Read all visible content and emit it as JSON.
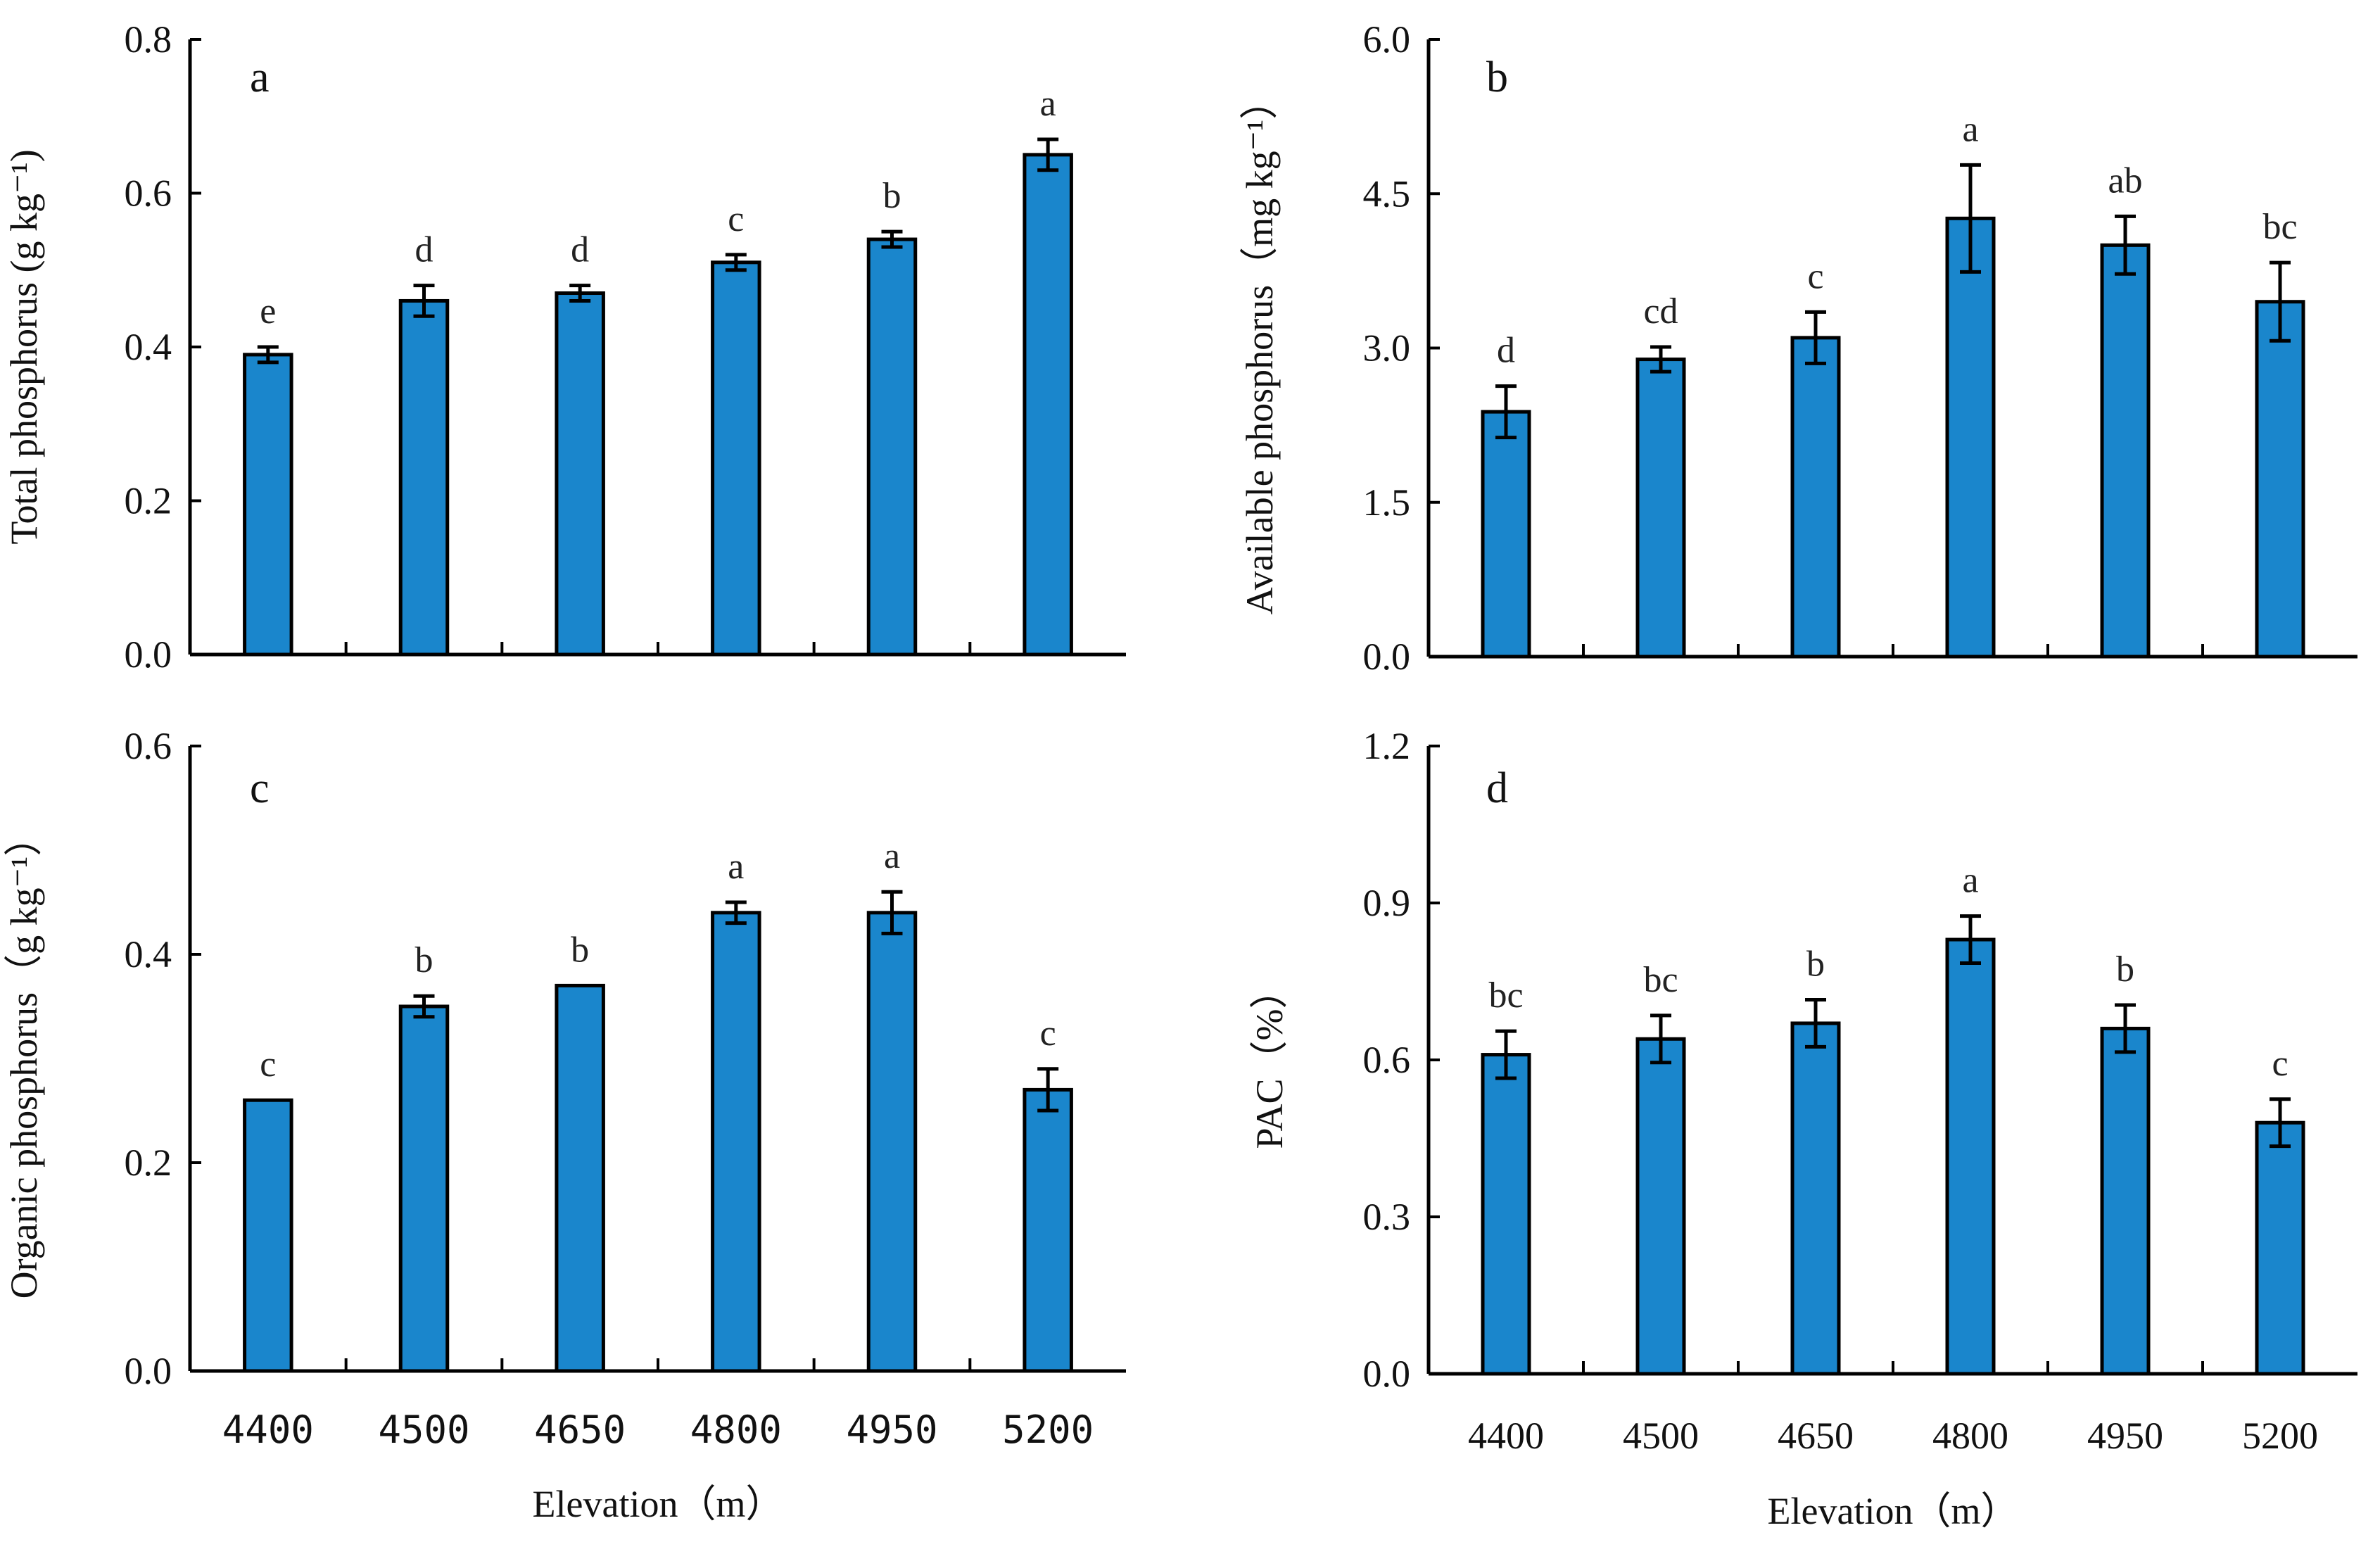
{
  "colors": {
    "bar_fill": "#1a86cc",
    "axis": "#000000"
  },
  "chart_data": [
    {
      "panel": "a",
      "type": "bar",
      "categories": [
        "4400",
        "4500",
        "4650",
        "4800",
        "4950",
        "5200"
      ],
      "values": [
        0.39,
        0.46,
        0.47,
        0.51,
        0.54,
        0.65
      ],
      "errors": [
        0.01,
        0.02,
        0.01,
        0.01,
        0.01,
        0.02
      ],
      "sig_letters": [
        "e",
        "d",
        "d",
        "c",
        "b",
        "a"
      ],
      "ylabel": "Total phosphorus (g kg⁻¹)",
      "xlabel": "",
      "ylim": [
        0,
        0.8
      ],
      "yticks": [
        "0.0",
        "0.2",
        "0.4",
        "0.6",
        "0.8"
      ]
    },
    {
      "panel": "b",
      "type": "bar",
      "categories": [
        "4400",
        "4500",
        "4650",
        "4800",
        "4950",
        "5200"
      ],
      "values": [
        2.38,
        2.89,
        3.1,
        4.26,
        4.0,
        3.45
      ],
      "errors": [
        0.25,
        0.12,
        0.25,
        0.52,
        0.28,
        0.38
      ],
      "sig_letters": [
        "d",
        "cd",
        "c",
        "a",
        "ab",
        "bc"
      ],
      "ylabel": "Available phosphorus（mg kg⁻¹）",
      "xlabel": "",
      "ylim": [
        0,
        6.0
      ],
      "yticks": [
        "0.0",
        "1.5",
        "3.0",
        "4.5",
        "6.0"
      ]
    },
    {
      "panel": "c",
      "type": "bar",
      "categories": [
        "4400",
        "4500",
        "4650",
        "4800",
        "4950",
        "5200"
      ],
      "values": [
        0.26,
        0.35,
        0.37,
        0.44,
        0.44,
        0.27
      ],
      "errors": [
        0.0,
        0.01,
        0.0,
        0.01,
        0.02,
        0.02
      ],
      "sig_letters": [
        "c",
        "b",
        "b",
        "a",
        "a",
        "c"
      ],
      "ylabel": "Organic phosphorus（g kg⁻¹）",
      "xlabel": "Elevation（m）",
      "ylim": [
        0,
        0.6
      ],
      "yticks": [
        "0.0",
        "0.2",
        "0.4",
        "0.6"
      ]
    },
    {
      "panel": "d",
      "type": "bar",
      "categories": [
        "4400",
        "4500",
        "4650",
        "4800",
        "4950",
        "5200"
      ],
      "values": [
        0.61,
        0.64,
        0.67,
        0.83,
        0.66,
        0.48
      ],
      "errors": [
        0.045,
        0.045,
        0.045,
        0.045,
        0.045,
        0.045
      ],
      "sig_letters": [
        "bc",
        "bc",
        "b",
        "a",
        "b",
        "c"
      ],
      "ylabel": "PAC（%）",
      "xlabel": "Elevation（m）",
      "ylim": [
        0,
        1.2
      ],
      "yticks": [
        "0.0",
        "0.3",
        "0.6",
        "0.9",
        "1.2"
      ]
    }
  ]
}
